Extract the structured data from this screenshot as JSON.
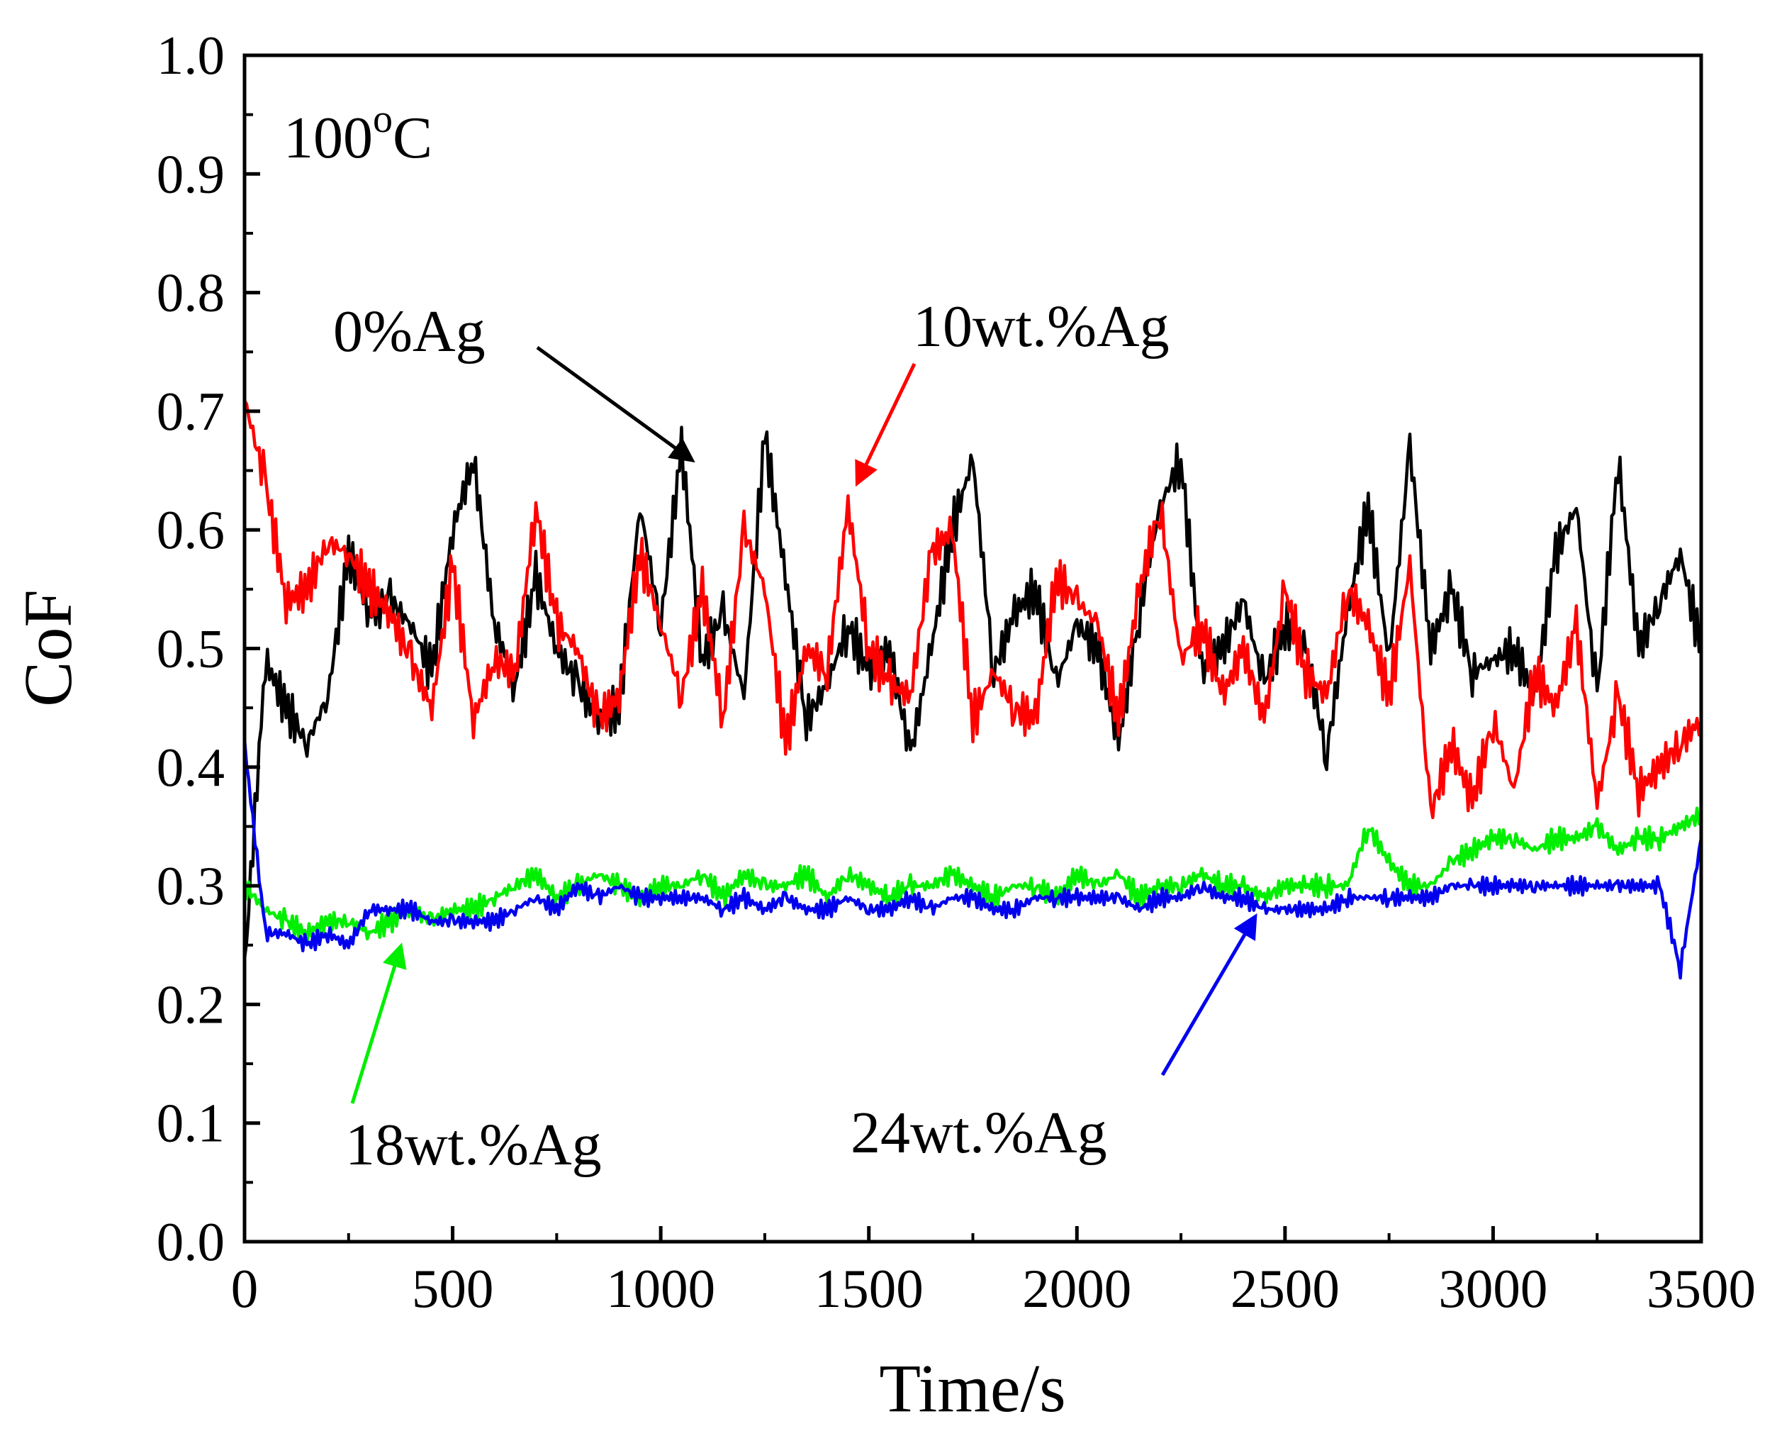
{
  "chart_data": {
    "type": "line",
    "title": "",
    "xlabel": "Time/s",
    "ylabel": "CoF",
    "xlim": [
      0,
      3500
    ],
    "ylim": [
      0.0,
      1.0
    ],
    "grid": false,
    "xticks": [
      "0",
      "500",
      "1000",
      "1500",
      "2000",
      "2500",
      "3000",
      "3500"
    ],
    "yticks": [
      "0.0",
      "0.1",
      "0.2",
      "0.3",
      "0.4",
      "0.5",
      "0.6",
      "0.7",
      "0.8",
      "0.9",
      "1.0"
    ],
    "temperature_label": "100",
    "temperature_sup": "o",
    "temperature_unit": "C",
    "x": [
      0,
      50,
      100,
      150,
      200,
      250,
      300,
      350,
      400,
      450,
      500,
      550,
      600,
      650,
      700,
      750,
      800,
      850,
      900,
      950,
      1000,
      1050,
      1100,
      1150,
      1200,
      1250,
      1300,
      1350,
      1400,
      1450,
      1500,
      1550,
      1600,
      1650,
      1700,
      1750,
      1800,
      1850,
      1900,
      1950,
      2000,
      2050,
      2100,
      2150,
      2200,
      2250,
      2300,
      2350,
      2400,
      2450,
      2500,
      2550,
      2600,
      2650,
      2700,
      2750,
      2800,
      2850,
      2900,
      2950,
      3000,
      3050,
      3100,
      3150,
      3200,
      3250,
      3300,
      3350,
      3400,
      3450,
      3500
    ],
    "series": [
      {
        "name": "0%Ag",
        "label": "0%Ag",
        "color": "#000000",
        "values": [
          0.23,
          0.49,
          0.45,
          0.42,
          0.46,
          0.58,
          0.53,
          0.54,
          0.52,
          0.48,
          0.6,
          0.66,
          0.52,
          0.47,
          0.56,
          0.5,
          0.47,
          0.44,
          0.45,
          0.62,
          0.52,
          0.67,
          0.49,
          0.53,
          0.46,
          0.68,
          0.56,
          0.44,
          0.47,
          0.52,
          0.48,
          0.5,
          0.41,
          0.5,
          0.6,
          0.66,
          0.48,
          0.53,
          0.55,
          0.47,
          0.52,
          0.5,
          0.42,
          0.53,
          0.62,
          0.66,
          0.48,
          0.5,
          0.54,
          0.47,
          0.52,
          0.5,
          0.41,
          0.53,
          0.62,
          0.49,
          0.67,
          0.5,
          0.55,
          0.48,
          0.49,
          0.5,
          0.46,
          0.58,
          0.62,
          0.46,
          0.66,
          0.5,
          0.54,
          0.58,
          0.5
        ]
      },
      {
        "name": "10wt.%Ag",
        "label": "10wt.%Ag",
        "color": "#ff0000",
        "values": [
          0.71,
          0.64,
          0.54,
          0.55,
          0.59,
          0.58,
          0.55,
          0.53,
          0.49,
          0.45,
          0.57,
          0.44,
          0.49,
          0.48,
          0.62,
          0.52,
          0.5,
          0.44,
          0.46,
          0.58,
          0.52,
          0.46,
          0.55,
          0.44,
          0.6,
          0.55,
          0.42,
          0.5,
          0.48,
          0.62,
          0.5,
          0.47,
          0.46,
          0.58,
          0.6,
          0.44,
          0.48,
          0.45,
          0.44,
          0.56,
          0.54,
          0.52,
          0.44,
          0.55,
          0.62,
          0.49,
          0.52,
          0.46,
          0.5,
          0.44,
          0.55,
          0.48,
          0.46,
          0.55,
          0.52,
          0.46,
          0.57,
          0.36,
          0.42,
          0.37,
          0.44,
          0.38,
          0.48,
          0.45,
          0.52,
          0.37,
          0.46,
          0.38,
          0.4,
          0.42,
          0.44
        ]
      },
      {
        "name": "18wt.%Ag",
        "label": "18wt.%Ag",
        "color": "#00ee00",
        "values": [
          0.3,
          0.28,
          0.27,
          0.26,
          0.27,
          0.27,
          0.26,
          0.27,
          0.28,
          0.27,
          0.28,
          0.28,
          0.29,
          0.3,
          0.31,
          0.29,
          0.3,
          0.31,
          0.3,
          0.29,
          0.3,
          0.3,
          0.31,
          0.29,
          0.31,
          0.3,
          0.3,
          0.31,
          0.29,
          0.31,
          0.3,
          0.29,
          0.3,
          0.3,
          0.31,
          0.3,
          0.29,
          0.3,
          0.3,
          0.29,
          0.31,
          0.3,
          0.31,
          0.29,
          0.3,
          0.3,
          0.31,
          0.3,
          0.3,
          0.29,
          0.3,
          0.3,
          0.3,
          0.3,
          0.35,
          0.32,
          0.3,
          0.3,
          0.32,
          0.33,
          0.34,
          0.34,
          0.33,
          0.34,
          0.34,
          0.35,
          0.33,
          0.34,
          0.34,
          0.35,
          0.36
        ]
      },
      {
        "name": "24wt.%Ag",
        "label": "24wt.%Ag",
        "color": "#0000ee",
        "values": [
          0.42,
          0.26,
          0.26,
          0.25,
          0.26,
          0.25,
          0.28,
          0.28,
          0.28,
          0.27,
          0.27,
          0.27,
          0.27,
          0.28,
          0.29,
          0.28,
          0.3,
          0.29,
          0.3,
          0.29,
          0.29,
          0.29,
          0.29,
          0.28,
          0.29,
          0.28,
          0.29,
          0.28,
          0.28,
          0.29,
          0.28,
          0.28,
          0.29,
          0.28,
          0.29,
          0.29,
          0.28,
          0.28,
          0.29,
          0.29,
          0.29,
          0.29,
          0.29,
          0.28,
          0.29,
          0.29,
          0.3,
          0.29,
          0.29,
          0.28,
          0.28,
          0.28,
          0.28,
          0.29,
          0.29,
          0.29,
          0.29,
          0.29,
          0.3,
          0.3,
          0.3,
          0.3,
          0.3,
          0.3,
          0.3,
          0.3,
          0.3,
          0.3,
          0.3,
          0.23,
          0.34
        ]
      }
    ],
    "annotations": [
      {
        "text": "0%Ag",
        "series": "0%Ag",
        "points_to": {
          "x": 1070,
          "y": 0.665
        }
      },
      {
        "text": "10wt.%Ag",
        "series": "10wt.%Ag",
        "points_to": {
          "x": 1460,
          "y": 0.64
        }
      },
      {
        "text": "18wt.%Ag",
        "series": "18wt.%Ag",
        "points_to": {
          "x": 380,
          "y": 0.26
        }
      },
      {
        "text": "24wt.%Ag",
        "series": "24wt.%Ag",
        "points_to": {
          "x": 2450,
          "y": 0.27
        }
      }
    ]
  }
}
